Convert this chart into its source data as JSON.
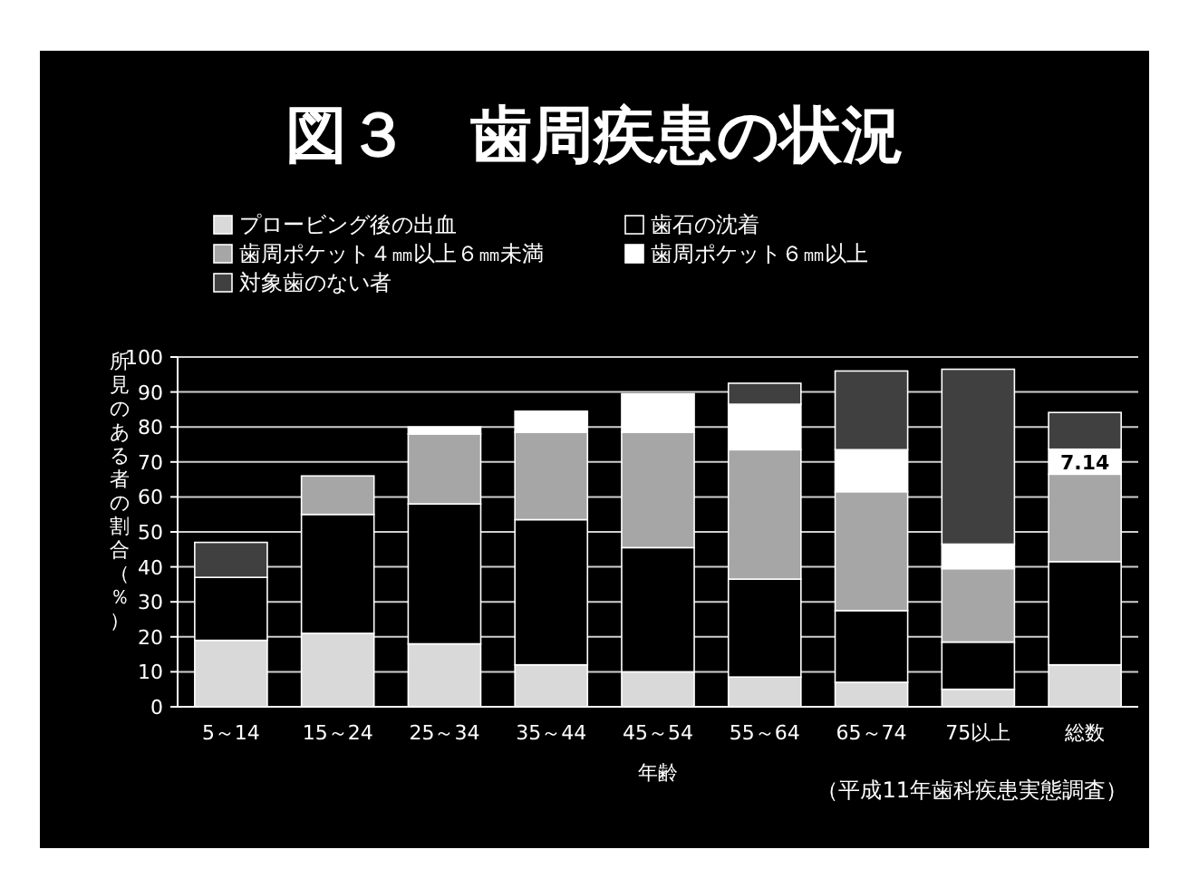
{
  "chart_data": {
    "type": "bar",
    "stacked": true,
    "title": "図３　歯周疾患の状況",
    "xlabel": "年齢",
    "ylabel": "所見のある者の割合（％）",
    "categories": [
      "5～14",
      "15～24",
      "25～34",
      "35～44",
      "45～54",
      "55～64",
      "65～74",
      "75以上",
      "総数"
    ],
    "series": [
      {
        "name": "プロービング後の出血",
        "color": "#d9d9d9",
        "values": [
          19,
          21,
          18,
          12,
          10,
          8.5,
          7,
          5,
          12
        ]
      },
      {
        "name": "歯石の沈着",
        "color": "#000000",
        "values": [
          18,
          34,
          40,
          41.5,
          35.5,
          28,
          20.5,
          13.5,
          29.5
        ]
      },
      {
        "name": "歯周ポケット４㎜以上６㎜未満",
        "color": "#a6a6a6",
        "values": [
          0,
          11,
          20,
          25,
          33,
          37,
          34,
          21,
          25
        ]
      },
      {
        "name": "歯周ポケット６㎜以上",
        "color": "#ffffff",
        "values": [
          0,
          0,
          2,
          6,
          11,
          13,
          12,
          7,
          7.14
        ],
        "value_labels": [
          null,
          null,
          null,
          null,
          null,
          null,
          null,
          null,
          "7.14"
        ]
      },
      {
        "name": "対象歯のない者",
        "color": "#404040",
        "values": [
          10,
          0,
          0,
          0,
          0,
          6,
          22.5,
          50,
          10.5
        ]
      }
    ],
    "ylim": [
      0,
      100
    ],
    "yticks": [
      0,
      10,
      20,
      30,
      40,
      50,
      60,
      70,
      80,
      90,
      100
    ],
    "grid": "y",
    "legend": "top",
    "annotations": [
      "（平成11年歯科疾患実態調査）"
    ]
  }
}
